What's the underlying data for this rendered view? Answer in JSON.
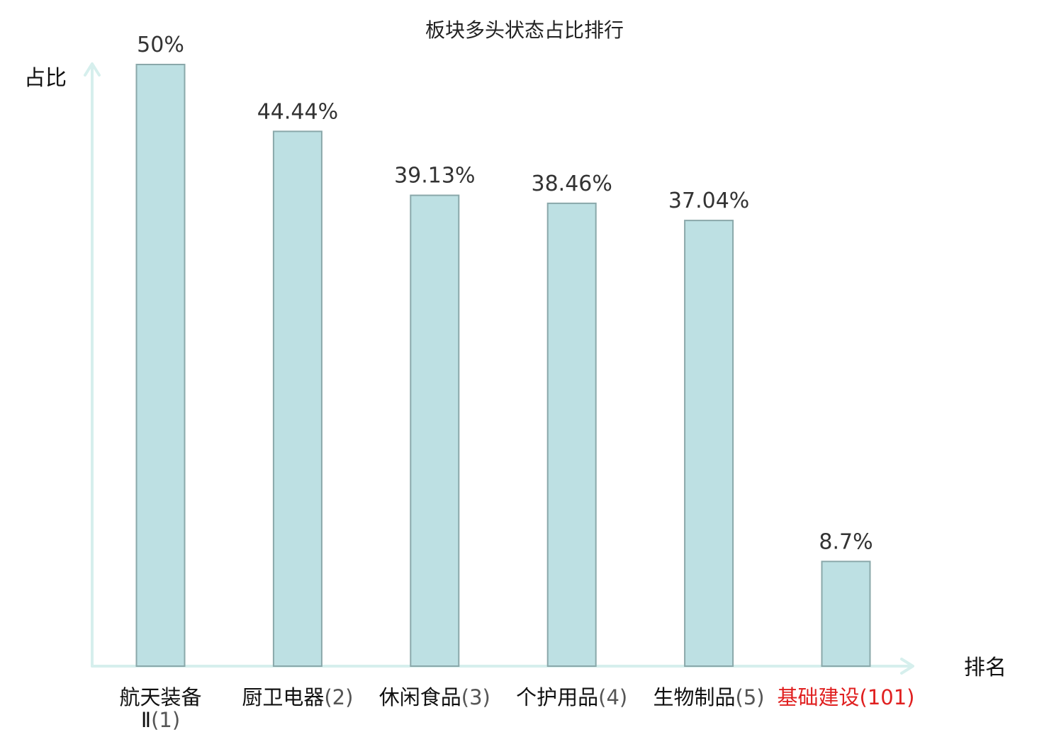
{
  "chart_data": {
    "type": "bar",
    "title": "板块多头状态占比排行",
    "ylabel": "占比",
    "xlabel": "排名",
    "ylim": [
      0,
      50
    ],
    "categories": [
      {
        "name_lines": [
          "航天装备",
          "Ⅱ"
        ],
        "rank": "(1)",
        "highlight": false
      },
      {
        "name_lines": [
          "厨卫电器"
        ],
        "rank": "(2)",
        "highlight": false
      },
      {
        "name_lines": [
          "休闲食品"
        ],
        "rank": "(3)",
        "highlight": false
      },
      {
        "name_lines": [
          "个护用品"
        ],
        "rank": "(4)",
        "highlight": false
      },
      {
        "name_lines": [
          "生物制品"
        ],
        "rank": "(5)",
        "highlight": false
      },
      {
        "name_lines": [
          "基础建设"
        ],
        "rank": "(101)",
        "highlight": true
      }
    ],
    "values": [
      50,
      44.44,
      39.13,
      38.46,
      37.04,
      8.7
    ],
    "value_labels": [
      "50%",
      "44.44%",
      "39.13%",
      "38.46%",
      "37.04%",
      "8.7%"
    ],
    "colors": {
      "bar_fill": "#bde0e3",
      "bar_stroke": "#8aa8aa",
      "axis": "#d6efed",
      "highlight_text": "#e02020",
      "normal_text": "#111111"
    },
    "grid": false,
    "legend": "none"
  }
}
